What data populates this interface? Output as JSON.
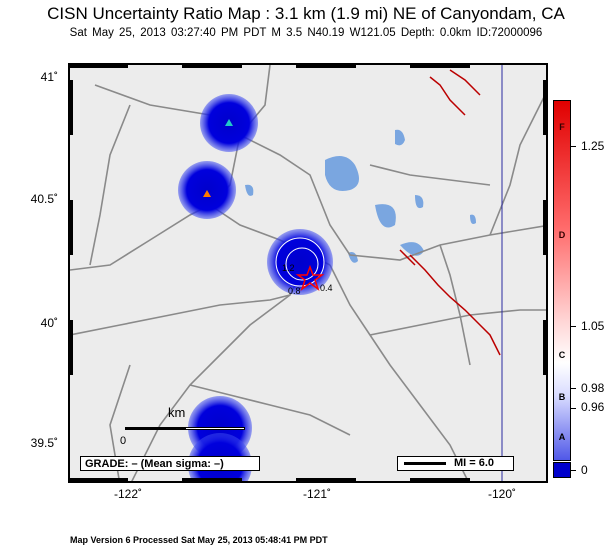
{
  "header": {
    "title": "CISN Uncertainty Ratio Map : 3.1 km (1.9 mi) NE of Canyondam, CA",
    "subtitle": "Sat May 25, 2013 03:27:40 PM PDT   M 3.5   N40.19 W121.05   Depth: 0.0km   ID:72000096"
  },
  "axes": {
    "lat_labels": [
      "41˚",
      "40.5˚",
      "40˚",
      "39.5˚"
    ],
    "lon_labels": [
      "-122˚",
      "-121˚",
      "-120˚"
    ]
  },
  "map": {
    "grade_text": "GRADE: – (Mean sigma: –)",
    "mi_legend": "MI = 6.0",
    "scalebar": {
      "unit": "km",
      "zero": "0",
      "end": ""
    },
    "contour_labels": [
      "1.2",
      "0.8",
      "0.4"
    ]
  },
  "colorscale": {
    "letters": [
      "F",
      "D",
      "C",
      "B",
      "A"
    ],
    "values": [
      "1.25",
      "1.05",
      "0.98",
      "0.96",
      "0"
    ]
  },
  "footer": {
    "text": "Map Version 6 Processed Sat May 25, 2013 05:48:41 PM PDT"
  },
  "colors": {
    "station_blue": "#0000dd",
    "fault_red": "#bb0000",
    "lake_blue": "#7aa6e0",
    "road_gray": "#8a8a8a",
    "epicenter": "#ff0000"
  }
}
